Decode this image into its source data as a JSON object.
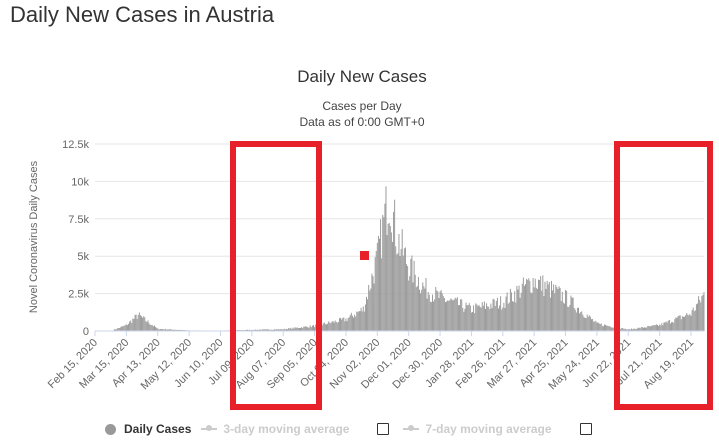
{
  "page": {
    "title": "Daily New Cases in Austria"
  },
  "highlight_color": "#e8202a",
  "legend": {
    "items": [
      {
        "label": "Daily Cases",
        "active": true,
        "color": "#999999"
      },
      {
        "label": "3-day moving average",
        "active": false,
        "color": "#cccccc"
      },
      {
        "label": "7-day moving average",
        "active": false,
        "color": "#cccccc"
      }
    ]
  },
  "chart_data": {
    "type": "bar",
    "title": "Daily New Cases",
    "subtitle_lines": [
      "Cases per Day",
      "Data as of 0:00 GMT+0"
    ],
    "ylabel": "Novel Coronavirus Daily Cases",
    "ylim": [
      0,
      12500
    ],
    "y_ticks": [
      "0",
      "2.5k",
      "5k",
      "7.5k",
      "10k",
      "12.5k"
    ],
    "x_tick_labels": [
      "Feb 15, 2020",
      "Mar 15, 2020",
      "Apr 13, 2020",
      "May 12, 2020",
      "Jun 10, 2020",
      "Jul 09, 2020",
      "Aug 07, 2020",
      "Sep 05, 2020",
      "Oct 04, 2020",
      "Nov 02, 2020",
      "Dec 01, 2020",
      "Dec 30, 2020",
      "Jan 28, 2021",
      "Feb 26, 2021",
      "Mar 27, 2021",
      "Apr 25, 2021",
      "May 24, 2021",
      "Jun 22, 2021",
      "Jul 21, 2021",
      "Aug 19, 2021"
    ],
    "series": [
      {
        "name": "Daily Cases",
        "color": "#999999",
        "approx_profile": [
          {
            "x": "Feb 15, 2020",
            "y": 0
          },
          {
            "x": "Mar 01, 2020",
            "y": 10
          },
          {
            "x": "Mar 15, 2020",
            "y": 400
          },
          {
            "x": "Mar 26, 2020",
            "y": 1100
          },
          {
            "x": "Apr 13, 2020",
            "y": 150
          },
          {
            "x": "May 12, 2020",
            "y": 40
          },
          {
            "x": "Jun 10, 2020",
            "y": 30
          },
          {
            "x": "Jul 09, 2020",
            "y": 80
          },
          {
            "x": "Aug 07, 2020",
            "y": 120
          },
          {
            "x": "Sep 05, 2020",
            "y": 350
          },
          {
            "x": "Oct 04, 2020",
            "y": 800
          },
          {
            "x": "Oct 20, 2020",
            "y": 1500
          },
          {
            "x": "Nov 02, 2020",
            "y": 5000
          },
          {
            "x": "Nov 13, 2020",
            "y": 9500
          },
          {
            "x": "Nov 20, 2020",
            "y": 6500
          },
          {
            "x": "Dec 01, 2020",
            "y": 4500
          },
          {
            "x": "Dec 15, 2020",
            "y": 3000
          },
          {
            "x": "Dec 30, 2020",
            "y": 2300
          },
          {
            "x": "Jan 28, 2021",
            "y": 1500
          },
          {
            "x": "Feb 26, 2021",
            "y": 2000
          },
          {
            "x": "Mar 27, 2021",
            "y": 3500
          },
          {
            "x": "Apr 25, 2021",
            "y": 2300
          },
          {
            "x": "May 24, 2021",
            "y": 500
          },
          {
            "x": "Jun 22, 2021",
            "y": 100
          },
          {
            "x": "Jul 21, 2021",
            "y": 400
          },
          {
            "x": "Aug 19, 2021",
            "y": 1200
          },
          {
            "x": "Aug 31, 2021",
            "y": 2500
          }
        ]
      }
    ]
  }
}
